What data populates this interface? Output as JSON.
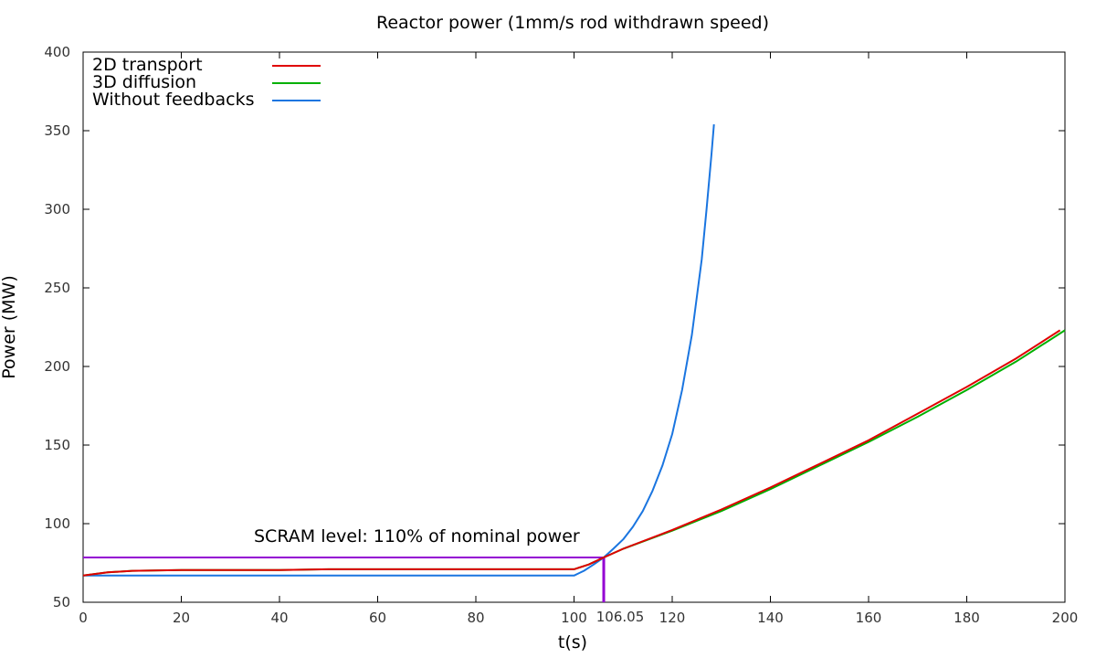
{
  "chart_data": {
    "type": "line",
    "title": "Reactor power (1mm/s rod withdrawn speed)",
    "xlabel": "t(s)",
    "ylabel": "Power (MW)",
    "xlim": [
      0,
      200
    ],
    "ylim": [
      50,
      400
    ],
    "x_ticks": [
      0,
      20,
      40,
      60,
      80,
      100,
      120,
      140,
      160,
      180,
      200
    ],
    "y_ticks": [
      50,
      100,
      150,
      200,
      250,
      300,
      350,
      400
    ],
    "grid": false,
    "legend_position": "top-left",
    "series": [
      {
        "name": "2D transport",
        "color": "#e00000",
        "x": [
          0,
          5,
          10,
          20,
          30,
          40,
          50,
          60,
          70,
          80,
          90,
          100,
          103,
          106.05,
          110,
          120,
          130,
          140,
          150,
          160,
          170,
          180,
          190,
          199
        ],
        "y": [
          67,
          69,
          70,
          70.5,
          70.5,
          70.5,
          71,
          71,
          71,
          71,
          71,
          71,
          74,
          78.5,
          84,
          96,
          109,
          123,
          138,
          153,
          170,
          187,
          205,
          223
        ]
      },
      {
        "name": "3D diffusion",
        "color": "#00b000",
        "x": [
          0,
          5,
          10,
          20,
          30,
          40,
          50,
          60,
          70,
          80,
          90,
          100,
          103,
          106.05,
          110,
          120,
          130,
          140,
          150,
          160,
          170,
          180,
          190,
          200
        ],
        "y": [
          67,
          69,
          70,
          70.5,
          70.5,
          70.5,
          71,
          71,
          71,
          71,
          71,
          71,
          74,
          78.5,
          84,
          95.5,
          108,
          122,
          137,
          152,
          168,
          185,
          203,
          223
        ]
      },
      {
        "name": "Without feedbacks",
        "color": "#1a75e0",
        "x": [
          0,
          20,
          40,
          60,
          80,
          100,
          102,
          104,
          106.05,
          108,
          110,
          112,
          114,
          116,
          118,
          120,
          122,
          124,
          126,
          127,
          128,
          128.5
        ],
        "y": [
          67,
          67,
          67,
          67,
          67,
          67,
          70,
          74,
          78.5,
          84,
          90,
          98,
          108,
          121,
          137,
          157,
          185,
          220,
          268,
          300,
          335,
          354
        ]
      }
    ],
    "annotations": {
      "scram_label": "SCRAM level: 110% of nominal power",
      "scram_level": 78.5,
      "scram_time_label": "106.05",
      "scram_time": 106.05,
      "scram_color": "#9400d3"
    }
  }
}
